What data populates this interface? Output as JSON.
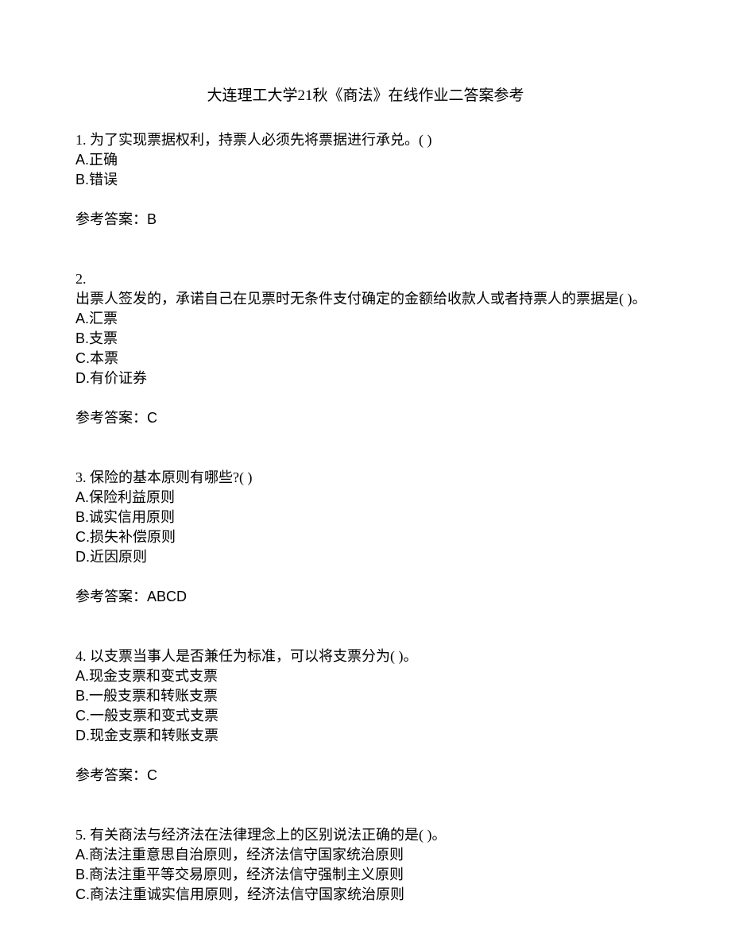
{
  "title": "大连理工大学21秋《商法》在线作业二答案参考",
  "questions": [
    {
      "number": "1.",
      "text": " 为了实现票据权利，持票人必须先将票据进行承兑。(   )",
      "options": [
        "A.正确",
        "B.错误"
      ],
      "answer": "参考答案：B"
    },
    {
      "number": "2.",
      "text": "",
      "textLine2": "出票人签发的，承诺自己在见票时无条件支付确定的金额给收款人或者持票人的票据是(  )。",
      "options": [
        "A.汇票",
        "B.支票",
        "C.本票",
        "D.有价证券"
      ],
      "answer": "参考答案：C"
    },
    {
      "number": "3.",
      "text": " 保险的基本原则有哪些?(  )",
      "options": [
        "A.保险利益原则",
        "B.诚实信用原则",
        "C.损失补偿原则",
        "D.近因原则"
      ],
      "answer": "参考答案：ABCD"
    },
    {
      "number": "4.",
      "text": " 以支票当事人是否兼任为标准，可以将支票分为(  )。",
      "options": [
        "A.现金支票和变式支票",
        "B.一般支票和转账支票",
        "C.一般支票和变式支票",
        "D.现金支票和转账支票"
      ],
      "answer": "参考答案：C"
    },
    {
      "number": "5.",
      "text": " 有关商法与经济法在法律理念上的区别说法正确的是(  )。",
      "options": [
        "A.商法注重意思自治原则，经济法信守国家统治原则",
        "B.商法注重平等交易原则，经济法信守强制主义原则",
        "C.商法注重诚实信用原则，经济法信守国家统治原则"
      ],
      "answer": ""
    }
  ]
}
